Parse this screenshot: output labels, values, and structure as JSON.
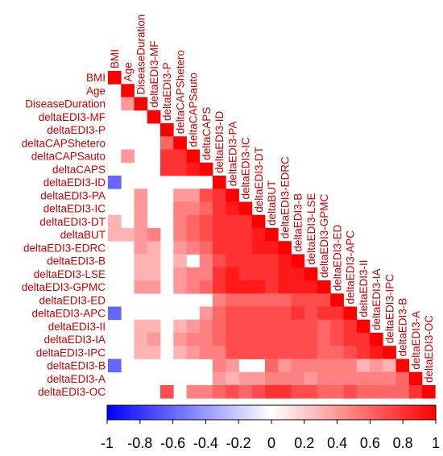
{
  "chart_data": {
    "type": "heatmap",
    "variant": "correlation-matrix-lower-triangle",
    "title": "",
    "xlabel": "",
    "ylabel": "",
    "variables": [
      "BMI",
      "Age",
      "DiseaseDuration",
      "deltaEDI3-MF",
      "deltaEDI3-P",
      "deltaCAPShetero",
      "deltaCAPSauto",
      "deltaCAPS",
      "deltaEDI3-ID",
      "deltaEDI3-PA",
      "deltaEDI3-IC",
      "deltaEDI3-DT",
      "deltaBUT",
      "deltaEDI3-EDRC",
      "deltaEDI3-B",
      "deltaEDI3-LSE",
      "deltaEDI3-GPMC",
      "deltaEDI3-ED",
      "deltaEDI3-APC",
      "deltaEDI3-II",
      "deltaEDI3-IA",
      "deltaEDI3-IPC",
      "deltaEDI3-B",
      "deltaEDI3-A",
      "deltaEDI3-OC"
    ],
    "matrix_lower": [
      [
        1
      ],
      [
        0,
        1
      ],
      [
        0,
        0.4,
        1
      ],
      [
        0,
        0,
        0,
        1
      ],
      [
        0,
        0,
        0,
        0,
        1
      ],
      [
        0,
        0,
        0,
        0,
        0.6,
        1
      ],
      [
        0,
        0.4,
        0,
        0,
        0.8,
        0.8,
        1
      ],
      [
        0,
        0,
        0,
        0,
        0.8,
        0.8,
        0.9,
        1
      ],
      [
        -0.6,
        0,
        0,
        0,
        0,
        0,
        0,
        0,
        1
      ],
      [
        0,
        0,
        0.4,
        0,
        0,
        0.4,
        0.4,
        0.7,
        0.8,
        1
      ],
      [
        0,
        0,
        0.4,
        0,
        0,
        0.5,
        0.5,
        0.6,
        0.8,
        0.9,
        1
      ],
      [
        0.3,
        0,
        0.4,
        0,
        0,
        0.5,
        0.6,
        0.7,
        0.8,
        0.8,
        0.8,
        1
      ],
      [
        0.3,
        0.3,
        0.4,
        0.5,
        0,
        0.5,
        0.6,
        0.7,
        0.8,
        0.8,
        0.8,
        0.9,
        1
      ],
      [
        0,
        0,
        0.4,
        0.3,
        0,
        0.4,
        0.5,
        0.6,
        0.8,
        0.8,
        0.8,
        0.9,
        0.9,
        1
      ],
      [
        0,
        0,
        0.3,
        0.3,
        0,
        0.3,
        0,
        0.5,
        0.7,
        0.8,
        0.8,
        0.8,
        0.8,
        0.9,
        1
      ],
      [
        0,
        0,
        0.3,
        0.3,
        0,
        0.4,
        0.5,
        0.5,
        0.8,
        0.9,
        0.8,
        0.8,
        0.8,
        0.9,
        0.9,
        1
      ],
      [
        0,
        0,
        0.4,
        0.4,
        0,
        0.4,
        0.5,
        0.6,
        0.8,
        0.9,
        0.9,
        0.9,
        0.8,
        0.9,
        0.9,
        0.9,
        1
      ],
      [
        0,
        0,
        0,
        0,
        0,
        0,
        0,
        0,
        0.5,
        0.6,
        0.6,
        0.6,
        0.6,
        0.6,
        0.7,
        0.7,
        0.7,
        1
      ],
      [
        -0.6,
        0,
        0,
        0,
        0,
        0,
        0,
        0.4,
        0.6,
        0.7,
        0.7,
        0.7,
        0.7,
        0.7,
        0.8,
        0.7,
        0.8,
        0.8,
        1
      ],
      [
        0,
        0,
        0.3,
        0.3,
        0,
        0.3,
        0.4,
        0.5,
        0.6,
        0.7,
        0.7,
        0.7,
        0.7,
        0.7,
        0.7,
        0.7,
        0.6,
        0.7,
        0.8,
        1
      ],
      [
        0,
        0,
        0.3,
        0.4,
        0,
        0.4,
        0.5,
        0.5,
        0.6,
        0.7,
        0.7,
        0.7,
        0.7,
        0.7,
        0.7,
        0.7,
        0.6,
        0.7,
        0.8,
        0.8,
        1
      ],
      [
        0,
        0,
        0.3,
        0.3,
        0,
        0.3,
        0.4,
        0.5,
        0.5,
        0.7,
        0.7,
        0.7,
        0.7,
        0.7,
        0.7,
        0.7,
        0.6,
        0.6,
        0.7,
        0.8,
        0.9,
        1
      ],
      [
        -0.6,
        0,
        0,
        0,
        0,
        0,
        0,
        0,
        0.5,
        0.4,
        0,
        0,
        0.6,
        0.4,
        0.5,
        0.5,
        0.5,
        0.5,
        0.5,
        0.3,
        0.4,
        0.3,
        1
      ],
      [
        0,
        0,
        0,
        0,
        0,
        0,
        0,
        0,
        0.4,
        0.3,
        0.4,
        0.4,
        0.5,
        0.5,
        0.5,
        0.4,
        0.5,
        0.5,
        0.5,
        0.5,
        0.5,
        0.5,
        0.6,
        1
      ],
      [
        0,
        0,
        0,
        0,
        0.7,
        0,
        0.5,
        0.5,
        0.6,
        0.7,
        0.6,
        0.7,
        0.8,
        0.8,
        0.7,
        0.7,
        0.6,
        0.6,
        0.7,
        0.6,
        0.6,
        0.6,
        0.6,
        0.8,
        1
      ]
    ],
    "colorbar": {
      "range": [
        -1,
        1
      ],
      "low_color": "#0000ff",
      "mid_color": "#ffffff",
      "high_color": "#ff0000",
      "ticks": [
        "-1",
        "-0.8",
        "-0.6",
        "-0.4",
        "-0.2",
        "0",
        "0.2",
        "0.4",
        "0.6",
        "0.8",
        "1"
      ]
    },
    "label_color": "#cc0000",
    "legend_position": "bottom"
  }
}
